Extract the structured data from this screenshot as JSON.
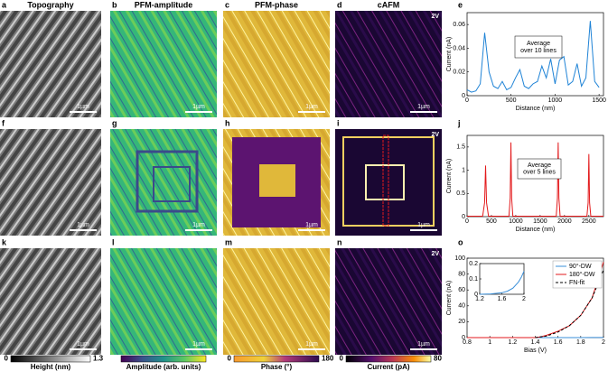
{
  "panel_letters": [
    "a",
    "b",
    "c",
    "d",
    "e",
    "f",
    "g",
    "h",
    "i",
    "j",
    "k",
    "l",
    "m",
    "n",
    "o"
  ],
  "column_titles": [
    "Topography",
    "PFM-amplitude",
    "PFM-phase",
    "cAFM"
  ],
  "scale_bar_label": "1µm",
  "bias_label": "2V",
  "colorbars": [
    {
      "label": "Height (nm)",
      "min": "0",
      "max": "1.3"
    },
    {
      "label": "Amplitude (arb. units)"
    },
    {
      "label": "Phase (°)",
      "min": "0",
      "max": "180"
    },
    {
      "label": "Current (pA)",
      "min": "0",
      "max": "80"
    }
  ],
  "chart_data": [
    {
      "type": "line",
      "xlabel": "Distance (nm)",
      "ylabel": "Current (nA)",
      "annotation": [
        "Average",
        "over 10 lines"
      ],
      "xlim": [
        0,
        1550
      ],
      "ylim": [
        0,
        0.07
      ],
      "xticks": [
        0,
        500,
        1000,
        1500
      ],
      "yticks": [
        0,
        0.02,
        0.04,
        0.06
      ],
      "series": [
        {
          "color": "#1f83d6",
          "x": [
            0,
            50,
            100,
            150,
            200,
            250,
            300,
            350,
            400,
            450,
            500,
            550,
            600,
            650,
            700,
            750,
            800,
            850,
            900,
            950,
            1000,
            1050,
            1100,
            1150,
            1200,
            1250,
            1300,
            1350,
            1400,
            1450,
            1500
          ],
          "values": [
            0.005,
            0.003,
            0.004,
            0.01,
            0.053,
            0.02,
            0.008,
            0.006,
            0.012,
            0.005,
            0.007,
            0.015,
            0.022,
            0.008,
            0.006,
            0.01,
            0.012,
            0.025,
            0.015,
            0.031,
            0.01,
            0.03,
            0.033,
            0.009,
            0.012,
            0.027,
            0.008,
            0.015,
            0.063,
            0.012,
            0.007
          ]
        }
      ]
    },
    {
      "type": "line",
      "xlabel": "Distance (nm)",
      "ylabel": "Current (nA)",
      "annotation": [
        "Average",
        "over 5 lines"
      ],
      "xlim": [
        0,
        2800
      ],
      "ylim": [
        0,
        1.75
      ],
      "xticks": [
        0,
        500,
        1000,
        1500,
        2000,
        2500
      ],
      "yticks": [
        0,
        0.5,
        1,
        1.5
      ],
      "series": [
        {
          "color": "#e31a1c",
          "x": [
            0,
            320,
            360,
            380,
            400,
            440,
            860,
            885,
            900,
            915,
            940,
            1830,
            1855,
            1870,
            1885,
            1910,
            2460,
            2485,
            2500,
            2515,
            2540,
            2800
          ],
          "values": [
            0.01,
            0.01,
            0.3,
            1.1,
            0.3,
            0.01,
            0.01,
            0.4,
            1.6,
            0.4,
            0.01,
            0.01,
            0.4,
            1.6,
            0.4,
            0.01,
            0.01,
            0.3,
            1.35,
            0.3,
            0.01,
            0.01
          ]
        }
      ]
    },
    {
      "type": "line",
      "xlabel": "Bias (V)",
      "ylabel": "Current (nA)",
      "legend": "upper right",
      "xlim": [
        0.8,
        2
      ],
      "ylim": [
        0,
        100
      ],
      "xticks": [
        0.8,
        1,
        1.2,
        1.4,
        1.6,
        1.8,
        2
      ],
      "yticks": [
        0,
        20,
        40,
        60,
        80,
        100
      ],
      "series": [
        {
          "name": "90°-DW",
          "color": "#3a8fd9",
          "x": [
            0.8,
            1.2,
            1.4,
            1.6,
            1.7,
            1.8,
            1.9,
            2
          ],
          "values": [
            0,
            0,
            0.005,
            0.01,
            0.02,
            0.04,
            0.08,
            0.15
          ]
        },
        {
          "name": "180°-DW",
          "color": "#e31a1c",
          "x": [
            0.8,
            1.2,
            1.4,
            1.45,
            1.5,
            1.6,
            1.7,
            1.8,
            1.9,
            2
          ],
          "values": [
            0,
            0,
            0,
            1,
            3,
            8,
            15,
            28,
            50,
            95
          ]
        },
        {
          "name": "FN-fit",
          "color": "#000000",
          "style": "dashed",
          "x": [
            1.4,
            1.5,
            1.6,
            1.7,
            1.8,
            1.9,
            2
          ],
          "values": [
            0,
            2,
            7,
            15,
            28,
            50,
            85
          ]
        }
      ]
    },
    {
      "type": "line",
      "xlim": [
        1.2,
        2
      ],
      "ylim": [
        0,
        0.2
      ],
      "xticks": [
        1.2,
        1.6,
        2
      ],
      "yticks": [
        0,
        0.1,
        0.2
      ],
      "series": [
        {
          "color": "#3a8fd9",
          "x": [
            1.2,
            1.4,
            1.6,
            1.7,
            1.8,
            1.9,
            1.95,
            2
          ],
          "values": [
            0,
            0.002,
            0.01,
            0.02,
            0.04,
            0.08,
            0.11,
            0.15
          ]
        }
      ]
    }
  ]
}
